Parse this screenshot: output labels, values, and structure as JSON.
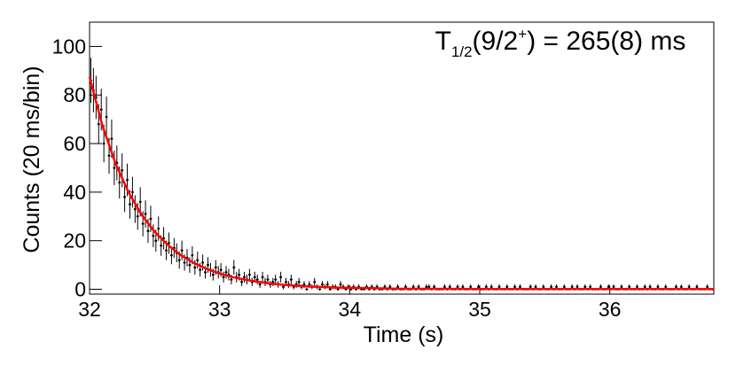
{
  "chart_data": {
    "type": "histogram",
    "annotation": {
      "parts": [
        "T",
        "1/2",
        "(9/2",
        "+",
        ") = 265(8) ms"
      ]
    },
    "x_label": "Time (s)",
    "y_label": "Counts (20 ms/bin)",
    "xlim": [
      32,
      36.8
    ],
    "ylim": [
      -2,
      110
    ],
    "xticks": [
      32,
      33,
      34,
      35,
      36
    ],
    "yticks": [
      0,
      20,
      40,
      60,
      80,
      100
    ],
    "color": "#000000",
    "bins": [
      32,
      32.02,
      32.04,
      32.06,
      32.08,
      32.1,
      32.12,
      32.14,
      32.16,
      32.18,
      32.2,
      32.22,
      32.24,
      32.26,
      32.28,
      32.3,
      32.32,
      32.34,
      32.36,
      32.38,
      32.4,
      32.42,
      32.44,
      32.46,
      32.48,
      32.5,
      32.52,
      32.54,
      32.56,
      32.58,
      32.6,
      32.62,
      32.64,
      32.66,
      32.68,
      32.7,
      32.72,
      32.74,
      32.76,
      32.78,
      32.8,
      32.82,
      32.84,
      32.86,
      32.88,
      32.9,
      32.92,
      32.94,
      32.96,
      32.98,
      33,
      33.02,
      33.04,
      33.06,
      33.08,
      33.1,
      33.12,
      33.14,
      33.16,
      33.18,
      33.2,
      33.22,
      33.24,
      33.26,
      33.28,
      33.3,
      33.32,
      33.34,
      33.36,
      33.38,
      33.4,
      33.42,
      33.44,
      33.46,
      33.48,
      33.5,
      33.52,
      33.54,
      33.56,
      33.58,
      33.6,
      33.62,
      33.64,
      33.66,
      33.68,
      33.7,
      33.72,
      33.74,
      33.76,
      33.78,
      33.8,
      33.82,
      33.84,
      33.86,
      33.88,
      33.9,
      33.92,
      33.94,
      33.96,
      33.98,
      34,
      34.02,
      34.04,
      34.06,
      34.08,
      34.1,
      34.12,
      34.14,
      34.16,
      34.18,
      34.2,
      34.22,
      34.24,
      34.26,
      34.28,
      34.3,
      34.32,
      34.34,
      34.36,
      34.38,
      34.4,
      34.42,
      34.44,
      34.46,
      34.48,
      34.5,
      34.52,
      34.54,
      34.56,
      34.58,
      34.6,
      34.62,
      34.64,
      34.66,
      34.68,
      34.7,
      34.72,
      34.74,
      34.76,
      34.78,
      34.8,
      34.82,
      34.84,
      34.86,
      34.88,
      34.9,
      34.92,
      34.94,
      34.96,
      34.98,
      35,
      35.02,
      35.04,
      35.06,
      35.08,
      35.1,
      35.12,
      35.14,
      35.16,
      35.18,
      35.2,
      35.22,
      35.24,
      35.26,
      35.28,
      35.3,
      35.32,
      35.34,
      35.36,
      35.38,
      35.4,
      35.42,
      35.44,
      35.46,
      35.48,
      35.5,
      35.52,
      35.54,
      35.56,
      35.58,
      35.6,
      35.62,
      35.64,
      35.66,
      35.68,
      35.7,
      35.72,
      35.74,
      35.76,
      35.78,
      35.8,
      35.82,
      35.84,
      35.86,
      35.88,
      35.9,
      35.92,
      35.94,
      35.96,
      35.98,
      36,
      36.02,
      36.04,
      36.06,
      36.08,
      36.1,
      36.12,
      36.14,
      36.16,
      36.18,
      36.2,
      36.22,
      36.24,
      36.26,
      36.28,
      36.3,
      36.32,
      36.34,
      36.36,
      36.38,
      36.4,
      36.42,
      36.44,
      36.46,
      36.48,
      36.5,
      36.52,
      36.54,
      36.56,
      36.58,
      36.6,
      36.62,
      36.64,
      36.66,
      36.68,
      36.7,
      36.72,
      36.74,
      36.76,
      36.78,
      36.8
    ],
    "values": [
      86,
      82,
      79,
      68,
      74,
      60,
      71,
      55,
      62,
      50,
      52,
      44,
      49,
      38,
      45,
      35,
      40,
      33,
      30,
      36,
      27,
      31,
      24,
      29,
      22,
      20,
      25,
      18,
      21,
      16,
      19,
      14,
      17,
      15,
      12,
      16,
      11,
      13,
      10,
      14,
      9,
      12,
      8,
      11,
      7,
      10,
      8,
      6,
      9,
      7,
      8,
      5,
      7,
      6,
      4,
      9,
      5,
      6,
      3,
      5,
      4,
      6,
      3,
      5,
      4,
      2,
      5,
      3,
      4,
      2,
      3,
      4,
      2,
      5,
      1,
      3,
      2,
      4,
      1,
      2,
      3,
      1,
      2,
      0,
      2,
      1,
      3,
      1,
      0,
      2,
      1,
      2,
      0,
      1,
      1,
      0,
      2,
      1,
      0,
      1,
      0,
      1,
      0,
      1,
      0,
      0,
      1,
      0,
      1,
      0,
      1,
      0,
      0,
      1,
      0,
      1,
      0,
      0,
      1,
      0,
      0,
      1,
      0,
      0,
      1,
      0,
      1,
      0,
      0,
      1,
      1,
      0,
      1,
      0,
      0,
      0,
      1,
      0,
      1,
      0,
      0,
      1,
      0,
      1,
      0,
      0,
      1,
      0,
      0,
      1,
      0,
      0,
      1,
      0,
      1,
      0,
      0,
      1,
      0,
      0,
      1,
      0,
      0,
      1,
      0,
      1,
      0,
      0,
      0,
      1,
      0,
      1,
      0,
      0,
      1,
      0,
      0,
      1,
      0,
      1,
      0,
      0,
      1,
      0,
      0,
      1,
      0,
      1,
      0,
      0,
      1,
      0,
      1,
      0,
      0,
      0,
      1,
      0,
      0,
      1,
      0,
      1,
      0,
      0,
      1,
      0,
      0,
      1,
      0,
      0,
      1,
      0,
      0,
      1,
      0,
      1,
      0,
      0,
      1,
      0,
      0,
      1,
      0,
      0,
      0,
      1,
      0,
      1,
      0,
      0,
      1,
      0,
      0,
      1,
      0,
      0,
      0,
      1,
      0,
      0
    ],
    "errors": [
      9.3,
      9.1,
      8.9,
      8.2,
      8.6,
      7.7,
      8.4,
      7.4,
      7.9,
      7.1,
      7.2,
      6.6,
      7,
      6.2,
      6.7,
      5.9,
      6.3,
      5.7,
      5.5,
      6,
      5.2,
      5.6,
      4.9,
      5.4,
      4.7,
      4.5,
      5,
      4.2,
      4.6,
      4,
      4.4,
      3.7,
      4.1,
      3.9,
      3.5,
      4,
      3.3,
      3.6,
      3.2,
      3.7,
      3,
      3.5,
      2.8,
      3.3,
      2.6,
      3.2,
      2.8,
      2.4,
      3,
      2.6,
      2.8,
      2.2,
      2.6,
      2.4,
      2,
      3,
      2.2,
      2.4,
      1.7,
      2.2,
      2,
      2.4,
      1.7,
      2.2,
      2,
      1.4,
      2.2,
      1.7,
      2,
      1.4,
      1.7,
      2,
      1.4,
      2.2,
      1,
      1.7,
      1.4,
      2,
      1,
      1.4,
      1.7,
      1,
      1.4,
      0,
      1.4,
      1,
      1.7,
      1,
      0,
      1.4,
      1,
      1.4,
      0,
      1,
      1,
      0,
      1.4,
      1,
      0,
      1,
      0,
      1,
      0,
      1,
      0,
      0,
      1,
      0,
      1,
      0,
      1,
      0,
      0,
      1,
      0,
      1,
      0,
      0,
      1,
      0,
      0,
      1,
      0,
      0,
      1,
      0,
      1,
      0,
      0,
      1,
      1,
      0,
      1,
      0,
      0,
      0,
      1,
      0,
      1,
      0,
      0,
      1,
      0,
      1,
      0,
      0,
      1,
      0,
      0,
      1,
      0,
      0,
      1,
      0,
      1,
      0,
      0,
      1,
      0,
      0,
      1,
      0,
      0,
      1,
      0,
      1,
      0,
      0,
      0,
      1,
      0,
      1,
      0,
      0,
      1,
      0,
      0,
      1,
      0,
      1,
      0,
      0,
      1,
      0,
      0,
      1,
      0,
      1,
      0,
      0,
      1,
      0,
      1,
      0,
      0,
      0,
      1,
      0,
      0,
      1,
      0,
      1,
      0,
      0,
      1,
      0,
      0,
      1,
      0,
      0,
      1,
      0,
      0,
      1,
      0,
      1,
      0,
      0,
      1,
      0,
      0,
      1,
      0,
      0,
      0,
      1,
      0,
      1,
      0,
      0,
      1,
      0,
      0,
      1,
      0,
      0,
      0,
      1,
      0,
      0
    ],
    "fit": {
      "color": "#ff0000",
      "x": [
        32,
        32.1,
        32.2,
        32.3,
        32.4,
        32.5,
        32.6,
        32.7,
        32.8,
        32.9,
        33,
        33.1,
        33.2,
        33.3,
        33.4,
        33.5,
        33.6,
        33.7,
        33.8,
        33.9,
        34,
        34.1,
        34.2,
        34.3,
        34.4,
        34.5,
        35,
        35.5,
        36,
        36.5,
        36.8
      ],
      "values": [
        87.3,
        67.2,
        51.8,
        39.9,
        30.7,
        23.7,
        18.3,
        14.1,
        10.9,
        8.4,
        6.5,
        5,
        3.9,
        3,
        2.3,
        1.8,
        1.4,
        1.1,
        0.9,
        0.7,
        0.6,
        0.5,
        0.4,
        0.3,
        0.2,
        0.2,
        0.1,
        0.1,
        0.1,
        0.1,
        0.1
      ]
    }
  }
}
